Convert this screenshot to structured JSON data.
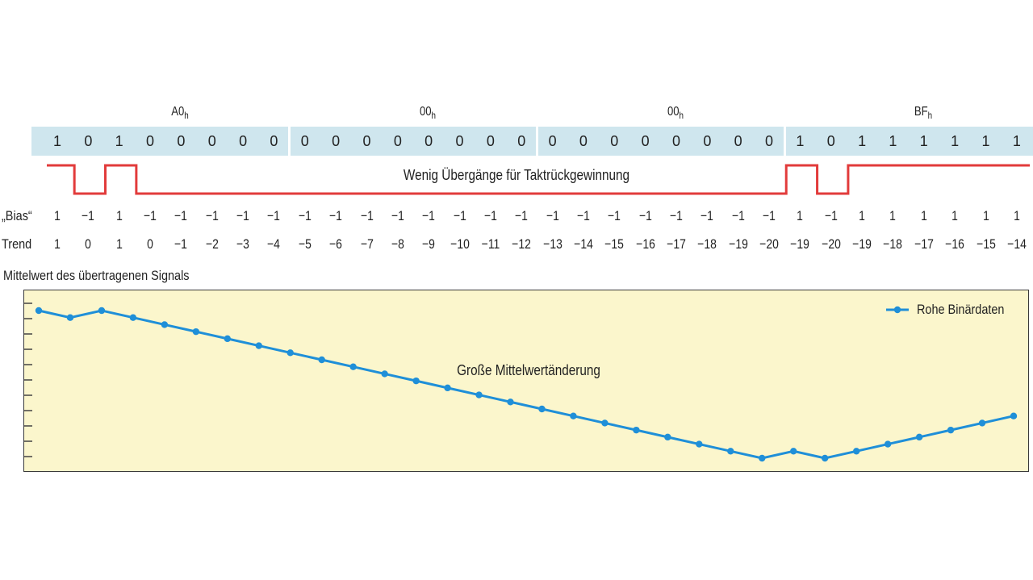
{
  "bytes": [
    {
      "name": "A0",
      "suffix": "h"
    },
    {
      "name": "00",
      "suffix": "h"
    },
    {
      "name": "00",
      "suffix": "h"
    },
    {
      "name": "BF",
      "suffix": "h"
    }
  ],
  "bits": [
    "1",
    "0",
    "1",
    "0",
    "0",
    "0",
    "0",
    "0",
    "0",
    "0",
    "0",
    "0",
    "0",
    "0",
    "0",
    "0",
    "0",
    "0",
    "0",
    "0",
    "0",
    "0",
    "0",
    "0",
    "1",
    "0",
    "1",
    "1",
    "1",
    "1",
    "1",
    "1"
  ],
  "rows": {
    "bias_label": "„Bias“",
    "bias": [
      "1",
      "−1",
      "1",
      "−1",
      "−1",
      "−1",
      "−1",
      "−1",
      "−1",
      "−1",
      "−1",
      "−1",
      "−1",
      "−1",
      "−1",
      "−1",
      "−1",
      "−1",
      "−1",
      "−1",
      "−1",
      "−1",
      "−1",
      "−1",
      "1",
      "−1",
      "1",
      "1",
      "1",
      "1",
      "1",
      "1"
    ],
    "trend_label": "Trend",
    "trend": [
      "1",
      "0",
      "1",
      "0",
      "−1",
      "−2",
      "−3",
      "−4",
      "−5",
      "−6",
      "−7",
      "−8",
      "−9",
      "−10",
      "−11",
      "−12",
      "−13",
      "−14",
      "−15",
      "−16",
      "−17",
      "−18",
      "−19",
      "−20",
      "−19",
      "−20",
      "−19",
      "−18",
      "−17",
      "−16",
      "−15",
      "−14"
    ]
  },
  "waveform": {
    "note": "Wenig Übergänge für Taktrückgewinnung",
    "color": "#e23b3b"
  },
  "chart": {
    "title": "Mittelwert des übertragenen Signals",
    "annotation": "Große Mittelwertänderung",
    "legend": "Rohe Binärdaten",
    "line_color": "#1f8fd8",
    "background": "#fbf6cc"
  },
  "chart_data": {
    "type": "line",
    "title": "Mittelwert des übertragenen Signals",
    "xlabel": "",
    "ylabel": "",
    "series": [
      {
        "name": "Rohe Binärdaten",
        "values": [
          1,
          0,
          1,
          0,
          -1,
          -2,
          -3,
          -4,
          -5,
          -6,
          -7,
          -8,
          -9,
          -10,
          -11,
          -12,
          -13,
          -14,
          -15,
          -16,
          -17,
          -18,
          -19,
          -20,
          -19,
          -20,
          -19,
          -18,
          -17,
          -16,
          -15,
          -14
        ]
      }
    ],
    "ylim": [
      -20,
      1
    ],
    "legend_position": "top-right",
    "grid": false
  }
}
